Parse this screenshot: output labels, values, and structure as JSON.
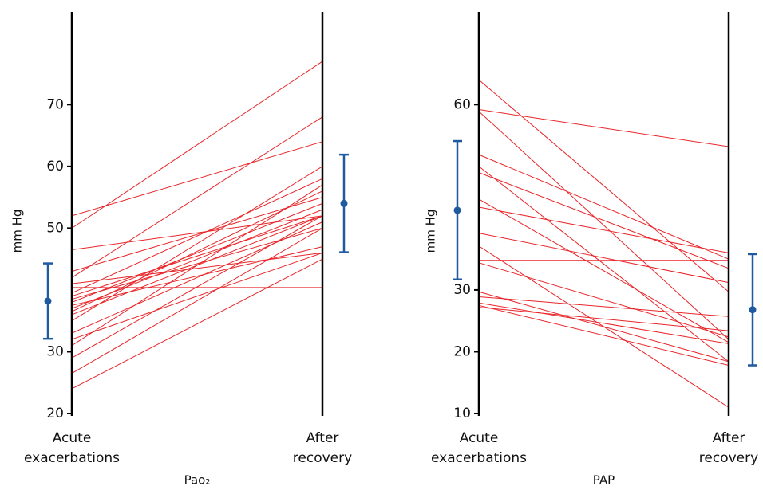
{
  "chart_data": [
    {
      "type": "slope",
      "xlabel": "Pao₂",
      "ylabel": "mm Hg",
      "categories": [
        "Acute\nexacerbations",
        "After\nrecovery"
      ],
      "ylim": [
        20,
        85
      ],
      "yticks": [
        20,
        30,
        50,
        60,
        70
      ],
      "line_color": "#e8262a",
      "series": [
        {
          "values": [
            52,
            64
          ]
        },
        {
          "values": [
            50,
            77
          ]
        },
        {
          "values": [
            46.5,
            52
          ]
        },
        {
          "values": [
            43,
            55
          ]
        },
        {
          "values": [
            42,
            68
          ]
        },
        {
          "values": [
            41,
            46
          ]
        },
        {
          "values": [
            40.4,
            40.4
          ]
        },
        {
          "values": [
            39.5,
            58
          ]
        },
        {
          "values": [
            39,
            52
          ]
        },
        {
          "values": [
            38.5,
            50
          ]
        },
        {
          "values": [
            38,
            54
          ]
        },
        {
          "values": [
            37.5,
            47
          ]
        },
        {
          "values": [
            37,
            53
          ]
        },
        {
          "values": [
            36.5,
            56
          ]
        },
        {
          "values": [
            36,
            52
          ]
        },
        {
          "values": [
            35,
            60
          ]
        },
        {
          "values": [
            33,
            51
          ]
        },
        {
          "values": [
            32,
            46
          ]
        },
        {
          "values": [
            31,
            57
          ]
        },
        {
          "values": [
            29,
            52
          ]
        },
        {
          "values": [
            26.5,
            50
          ]
        },
        {
          "values": [
            24,
            45
          ]
        }
      ],
      "error_bars": {
        "color": "#1f5aa0",
        "values": [
          38.2,
          54
        ],
        "errors": [
          6.1,
          7.9
        ]
      }
    },
    {
      "type": "slope",
      "xlabel": "PAP",
      "ylabel": "mm Hg",
      "categories": [
        "Acute\nexacerbations",
        "After\nrecovery"
      ],
      "ylim": [
        10,
        75
      ],
      "yticks": [
        10,
        20,
        30,
        60
      ],
      "line_color": "#e8262a",
      "series": [
        {
          "values": [
            64,
            29.7
          ]
        },
        {
          "values": [
            59.2,
            53.2
          ]
        },
        {
          "values": [
            58.9,
            22
          ]
        },
        {
          "values": [
            51.9,
            35
          ]
        },
        {
          "values": [
            50,
            18.4
          ]
        },
        {
          "values": [
            49,
            33.5
          ]
        },
        {
          "values": [
            44.7,
            21.5
          ]
        },
        {
          "values": [
            43.4,
            36
          ]
        },
        {
          "values": [
            39.2,
            31.2
          ]
        },
        {
          "values": [
            37.1,
            11
          ]
        },
        {
          "values": [
            34.8,
            34.8
          ]
        },
        {
          "values": [
            34.4,
            22.4
          ]
        },
        {
          "values": [
            29.7,
            18.4
          ]
        },
        {
          "values": [
            28.9,
            25.7
          ]
        },
        {
          "values": [
            27.9,
            21.3
          ]
        },
        {
          "values": [
            27.5,
            17.8
          ]
        },
        {
          "values": [
            27.2,
            23.4
          ]
        }
      ],
      "error_bars": {
        "color": "#1f5aa0",
        "values": [
          42.9,
          26.8
        ],
        "errors": [
          11.2,
          9
        ]
      }
    }
  ]
}
